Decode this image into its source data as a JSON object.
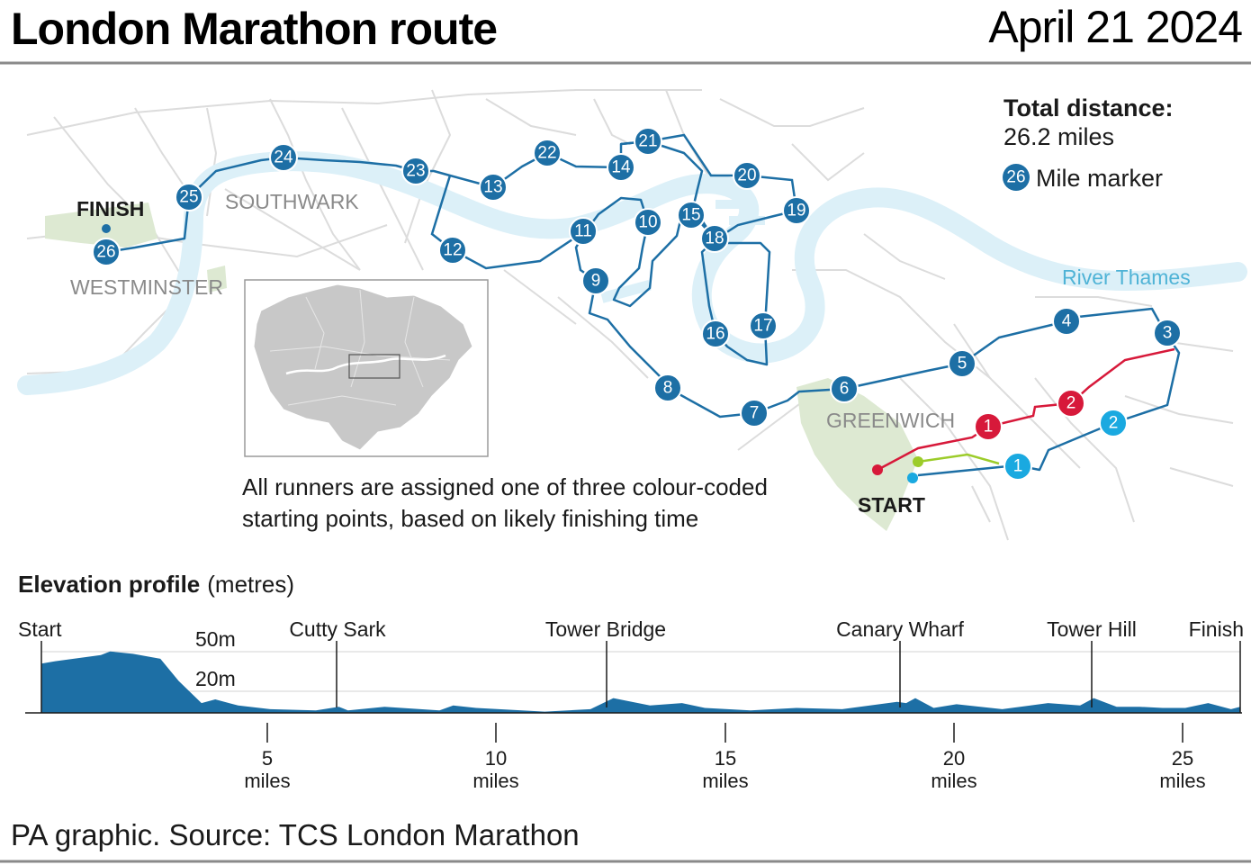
{
  "header": {
    "title": "London Marathon route",
    "date": "April 21 2024"
  },
  "map": {
    "areas": {
      "southwark": "SOUTHWARK",
      "westminster": "WESTMINSTER",
      "greenwich": "GREENWICH"
    },
    "finish_label": "FINISH",
    "start_label": "START",
    "river_label": "River Thames",
    "note_line1": "All runners are assigned one of three colour-coded",
    "note_line2": "starting points, based on likely finishing time",
    "route_markers": [
      "1",
      "2",
      "3",
      "4",
      "5",
      "6",
      "7",
      "8",
      "9",
      "10",
      "11",
      "12",
      "13",
      "14",
      "15",
      "16",
      "17",
      "18",
      "19",
      "20",
      "21",
      "22",
      "23",
      "24",
      "25",
      "26"
    ],
    "red_start_markers": [
      "1",
      "2"
    ],
    "blue_start_markers": [
      "1",
      "2"
    ]
  },
  "legend": {
    "total_label": "Total distance:",
    "total_value": "26.2 miles",
    "marker_icon_text": "26",
    "marker_label": "Mile marker"
  },
  "colors": {
    "route_blue": "#1d6fa5",
    "red_start": "#d7193a",
    "light_blue_start": "#1aa9e0",
    "green_start": "#9ccc2a",
    "river": "#dcf0f8",
    "park": "#dde9d2",
    "roads": "#dcdcdc",
    "elevation_fill": "#1d6fa5"
  },
  "elevation": {
    "title": "Elevation profile",
    "unit": "(metres)",
    "labels": {
      "start": "Start",
      "cutty_sark": "Cutty Sark",
      "tower_bridge": "Tower Bridge",
      "canary_wharf": "Canary Wharf",
      "tower_hill": "Tower Hill",
      "finish": "Finish"
    },
    "y_labels": {
      "m50": "50m",
      "m20": "20m"
    },
    "ticks": [
      "5",
      "10",
      "15",
      "20",
      "25"
    ],
    "tick_unit": "miles"
  },
  "chart_data": {
    "type": "area",
    "title": "Elevation profile",
    "ylabel": "metres",
    "xlim": [
      0,
      26.2
    ],
    "ylim": [
      0,
      60
    ],
    "x_tick_labels": [
      "5",
      "10",
      "15",
      "20",
      "25"
    ],
    "x": [
      0,
      0.3,
      1.3,
      1.5,
      2.0,
      2.6,
      3.0,
      3.5,
      3.8,
      4.3,
      5.0,
      6.0,
      6.5,
      6.7,
      7.5,
      8.7,
      9.0,
      9.5,
      10.5,
      11.0,
      12.0,
      12.5,
      13.3,
      14.0,
      14.5,
      15.5,
      16.5,
      17.5,
      18.7,
      18.9,
      19.1,
      19.5,
      20.0,
      21.0,
      22.0,
      22.7,
      23.0,
      23.5,
      24.0,
      24.5,
      25.0,
      25.5,
      26.0,
      26.2
    ],
    "y": [
      40,
      42,
      47,
      50,
      48,
      44,
      26,
      8,
      11,
      6,
      3,
      2,
      5,
      2,
      5,
      2,
      6,
      4,
      2,
      1,
      3,
      12,
      6,
      8,
      4,
      2,
      4,
      3,
      9,
      8,
      12,
      4,
      7,
      3,
      8,
      6,
      12,
      5,
      5,
      4,
      4,
      8,
      3,
      5
    ]
  },
  "footer": {
    "source": "PA graphic. Source: TCS London Marathon"
  }
}
